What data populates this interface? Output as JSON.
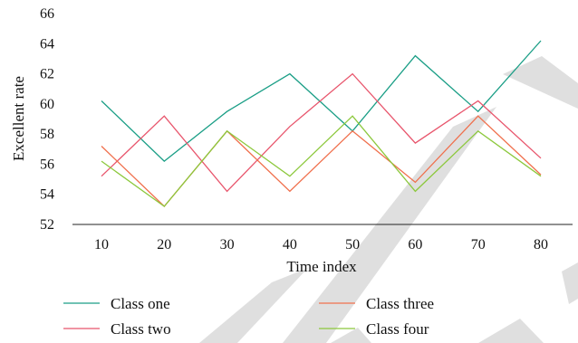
{
  "chart_data": {
    "type": "line",
    "title": "",
    "xlabel": "Time index",
    "ylabel": "Excellent rate",
    "x": [
      10,
      20,
      30,
      40,
      50,
      60,
      70,
      80
    ],
    "xlim": [
      10,
      80
    ],
    "ylim": [
      52,
      66
    ],
    "yticks": [
      52,
      54,
      56,
      58,
      60,
      62,
      64,
      66
    ],
    "grid": false,
    "legend_position": "bottom",
    "series": [
      {
        "name": "Class one",
        "color": "#1a9e86",
        "values": [
          60.2,
          56.2,
          59.5,
          62.0,
          58.2,
          63.2,
          59.5,
          64.2
        ]
      },
      {
        "name": "Class two",
        "color": "#e8556c",
        "values": [
          55.2,
          59.2,
          54.2,
          58.5,
          62.0,
          57.4,
          60.2,
          56.4
        ]
      },
      {
        "name": "Class three",
        "color": "#f0704d",
        "values": [
          57.2,
          53.2,
          58.2,
          54.2,
          58.2,
          54.8,
          59.2,
          55.3
        ]
      },
      {
        "name": "Class four",
        "color": "#8cc83c",
        "values": [
          56.2,
          53.2,
          58.2,
          55.2,
          59.2,
          54.2,
          58.2,
          55.2
        ]
      }
    ]
  },
  "watermark": {
    "color": "#d9d9d9"
  }
}
